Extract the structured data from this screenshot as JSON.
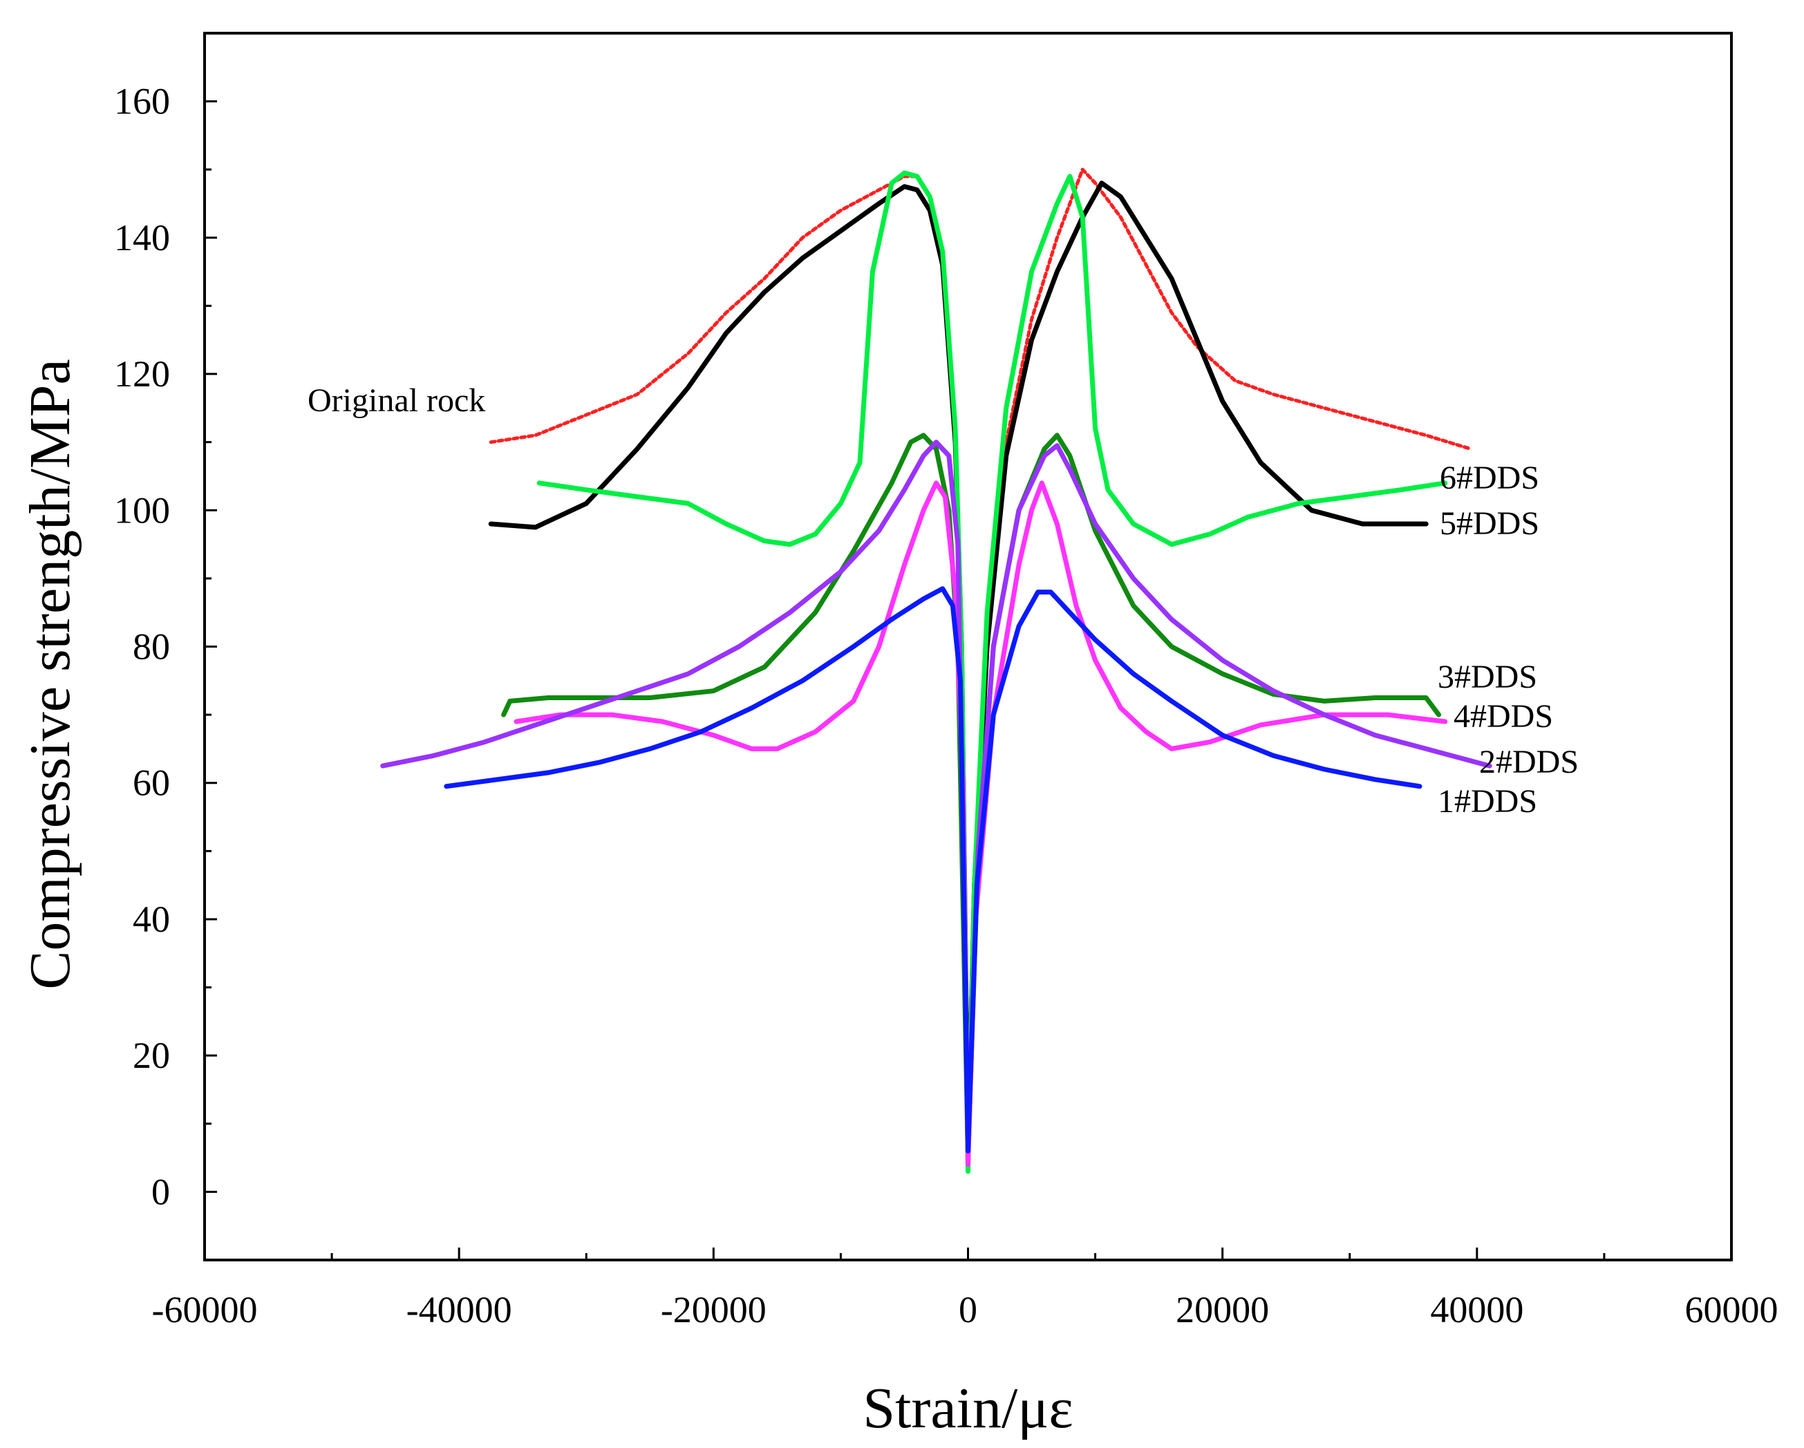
{
  "chart_data": {
    "type": "line",
    "title": "",
    "xlabel": "Strain/με",
    "ylabel": "Compressive strength/MPa",
    "xlim": [
      -60000,
      60000
    ],
    "ylim": [
      -10,
      170
    ],
    "xticks": [
      -60000,
      -40000,
      -20000,
      0,
      20000,
      40000,
      60000
    ],
    "xtick_labels": [
      "-60000",
      "-40000",
      "-20000",
      "0",
      "20000",
      "40000",
      "60000"
    ],
    "yticks": [
      0,
      20,
      40,
      60,
      80,
      100,
      120,
      140,
      160
    ],
    "ytick_labels": [
      "0",
      "20",
      "40",
      "60",
      "80",
      "100",
      "120",
      "140",
      "160"
    ],
    "grid": false,
    "series": [
      {
        "name": "Original rock",
        "label": "Original rock",
        "color": "#ff2020",
        "style": "scattered",
        "points": [
          [
            -37500,
            110
          ],
          [
            -34000,
            111
          ],
          [
            -30000,
            114
          ],
          [
            -26000,
            117
          ],
          [
            -22000,
            123
          ],
          [
            -19000,
            129
          ],
          [
            -16000,
            134
          ],
          [
            -13000,
            140
          ],
          [
            -10000,
            144
          ],
          [
            -7000,
            147
          ],
          [
            -5000,
            149
          ],
          [
            -4000,
            149
          ],
          [
            -3000,
            146
          ],
          [
            -2000,
            138
          ],
          [
            -1000,
            110
          ],
          [
            -500,
            80
          ],
          [
            0,
            14
          ],
          [
            500,
            45
          ],
          [
            1500,
            80
          ],
          [
            3000,
            110
          ],
          [
            5000,
            128
          ],
          [
            7000,
            140
          ],
          [
            9000,
            150
          ],
          [
            10000,
            148
          ],
          [
            12000,
            143
          ],
          [
            14000,
            136
          ],
          [
            16000,
            129
          ],
          [
            18000,
            124
          ],
          [
            21000,
            119
          ],
          [
            24000,
            117
          ],
          [
            28000,
            115
          ],
          [
            32000,
            113
          ],
          [
            36000,
            111
          ],
          [
            39500,
            109
          ]
        ]
      },
      {
        "name": "5#DDS",
        "label": "5#DDS",
        "color": "#000000",
        "style": "line",
        "points": [
          [
            -37500,
            98
          ],
          [
            -34000,
            97.5
          ],
          [
            -30000,
            101
          ],
          [
            -26000,
            109
          ],
          [
            -22000,
            118
          ],
          [
            -19000,
            126
          ],
          [
            -16000,
            132
          ],
          [
            -13000,
            137
          ],
          [
            -10000,
            141
          ],
          [
            -7000,
            145
          ],
          [
            -5000,
            147.5
          ],
          [
            -4000,
            147
          ],
          [
            -3000,
            144
          ],
          [
            -2000,
            136
          ],
          [
            -1000,
            110
          ],
          [
            -500,
            80
          ],
          [
            0,
            6
          ],
          [
            500,
            45
          ],
          [
            1500,
            80
          ],
          [
            3000,
            108
          ],
          [
            5000,
            125
          ],
          [
            7000,
            135
          ],
          [
            9000,
            143
          ],
          [
            10500,
            148
          ],
          [
            12000,
            146
          ],
          [
            14000,
            140
          ],
          [
            16000,
            134
          ],
          [
            18000,
            125
          ],
          [
            20000,
            116
          ],
          [
            23000,
            107
          ],
          [
            27000,
            100
          ],
          [
            31000,
            98
          ],
          [
            36000,
            98
          ]
        ]
      },
      {
        "name": "6#DDS",
        "label": "6#DDS",
        "color": "#00ee44",
        "style": "line",
        "points": [
          [
            -33700,
            104
          ],
          [
            -30000,
            103
          ],
          [
            -26000,
            102
          ],
          [
            -22000,
            101
          ],
          [
            -19000,
            98
          ],
          [
            -16000,
            95.5
          ],
          [
            -14000,
            95
          ],
          [
            -12000,
            96.5
          ],
          [
            -10000,
            101
          ],
          [
            -8500,
            107
          ],
          [
            -7500,
            135
          ],
          [
            -6000,
            148
          ],
          [
            -5000,
            149.5
          ],
          [
            -4000,
            149
          ],
          [
            -3000,
            146
          ],
          [
            -2000,
            138
          ],
          [
            -1000,
            112
          ],
          [
            -500,
            80
          ],
          [
            0,
            3
          ],
          [
            500,
            45
          ],
          [
            1500,
            85
          ],
          [
            3000,
            115
          ],
          [
            5000,
            135
          ],
          [
            7000,
            145
          ],
          [
            8000,
            149
          ],
          [
            9000,
            143
          ],
          [
            10000,
            112
          ],
          [
            11000,
            103
          ],
          [
            13000,
            98
          ],
          [
            16000,
            95
          ],
          [
            19000,
            96.5
          ],
          [
            22000,
            99
          ],
          [
            26000,
            101
          ],
          [
            30000,
            102
          ],
          [
            34000,
            103
          ],
          [
            37500,
            104
          ]
        ]
      },
      {
        "name": "3#DDS",
        "label": "3#DDS",
        "color": "#108a10",
        "style": "line",
        "points": [
          [
            -36500,
            70
          ],
          [
            -36000,
            72
          ],
          [
            -33000,
            72.5
          ],
          [
            -29000,
            72.5
          ],
          [
            -25000,
            72.5
          ],
          [
            -20000,
            73.5
          ],
          [
            -16000,
            77
          ],
          [
            -12000,
            85
          ],
          [
            -9000,
            94
          ],
          [
            -6000,
            104
          ],
          [
            -4500,
            110
          ],
          [
            -3500,
            111
          ],
          [
            -2500,
            109
          ],
          [
            -1500,
            100
          ],
          [
            -800,
            80
          ],
          [
            0,
            5
          ],
          [
            800,
            50
          ],
          [
            2000,
            80
          ],
          [
            4000,
            100
          ],
          [
            6000,
            109
          ],
          [
            7000,
            111
          ],
          [
            8000,
            108
          ],
          [
            10000,
            97
          ],
          [
            13000,
            86
          ],
          [
            16000,
            80
          ],
          [
            20000,
            76
          ],
          [
            24000,
            73
          ],
          [
            28000,
            72
          ],
          [
            32000,
            72.5
          ],
          [
            36000,
            72.5
          ],
          [
            37000,
            70
          ]
        ]
      },
      {
        "name": "4#DDS",
        "label": "4#DDS",
        "color": "#ff33ff",
        "style": "line",
        "points": [
          [
            -35500,
            69
          ],
          [
            -32000,
            70
          ],
          [
            -28000,
            70
          ],
          [
            -24000,
            69
          ],
          [
            -20000,
            67
          ],
          [
            -17000,
            65
          ],
          [
            -15000,
            65
          ],
          [
            -12000,
            67.5
          ],
          [
            -9000,
            72
          ],
          [
            -7000,
            80
          ],
          [
            -5000,
            92
          ],
          [
            -3500,
            100
          ],
          [
            -2500,
            104
          ],
          [
            -1800,
            102
          ],
          [
            -1000,
            88
          ],
          [
            -400,
            60
          ],
          [
            0,
            4
          ],
          [
            600,
            40
          ],
          [
            2000,
            70
          ],
          [
            4000,
            92
          ],
          [
            5000,
            100
          ],
          [
            5800,
            104
          ],
          [
            7000,
            98
          ],
          [
            8500,
            86
          ],
          [
            10000,
            78
          ],
          [
            12000,
            71
          ],
          [
            14000,
            67.5
          ],
          [
            16000,
            65
          ],
          [
            19000,
            66
          ],
          [
            23000,
            68.5
          ],
          [
            28000,
            70
          ],
          [
            33000,
            70
          ],
          [
            37500,
            69
          ]
        ]
      },
      {
        "name": "2#DDS",
        "label": "2#DDS",
        "color": "#9933ff",
        "style": "line",
        "points": [
          [
            -46000,
            62.5
          ],
          [
            -42000,
            64
          ],
          [
            -38000,
            66
          ],
          [
            -34000,
            68.5
          ],
          [
            -30000,
            71
          ],
          [
            -26000,
            73.5
          ],
          [
            -22000,
            76
          ],
          [
            -18000,
            80
          ],
          [
            -14000,
            85
          ],
          [
            -10000,
            91
          ],
          [
            -7000,
            97
          ],
          [
            -5000,
            103
          ],
          [
            -3500,
            108
          ],
          [
            -2500,
            110
          ],
          [
            -1500,
            108
          ],
          [
            -800,
            95
          ],
          [
            0,
            8
          ],
          [
            800,
            50
          ],
          [
            2000,
            80
          ],
          [
            4000,
            100
          ],
          [
            6000,
            108
          ],
          [
            7000,
            109.5
          ],
          [
            8000,
            106
          ],
          [
            10000,
            98
          ],
          [
            13000,
            90
          ],
          [
            16000,
            84
          ],
          [
            20000,
            78
          ],
          [
            24000,
            73.5
          ],
          [
            28000,
            70
          ],
          [
            32000,
            67
          ],
          [
            36000,
            65
          ],
          [
            41000,
            62.5
          ]
        ]
      },
      {
        "name": "1#DDS",
        "label": "1#DDS",
        "color": "#0a1aff",
        "style": "line",
        "points": [
          [
            -41000,
            59.5
          ],
          [
            -37000,
            60.5
          ],
          [
            -33000,
            61.5
          ],
          [
            -29000,
            63
          ],
          [
            -25000,
            65
          ],
          [
            -21000,
            67.5
          ],
          [
            -17000,
            71
          ],
          [
            -13000,
            75
          ],
          [
            -9000,
            80
          ],
          [
            -6000,
            84
          ],
          [
            -3500,
            87
          ],
          [
            -2000,
            88.5
          ],
          [
            -1200,
            86
          ],
          [
            -600,
            75
          ],
          [
            0,
            6
          ],
          [
            700,
            45
          ],
          [
            2000,
            70
          ],
          [
            4000,
            83
          ],
          [
            5500,
            88
          ],
          [
            6500,
            88
          ],
          [
            8000,
            85
          ],
          [
            10000,
            81
          ],
          [
            13000,
            76
          ],
          [
            16000,
            72
          ],
          [
            20000,
            67
          ],
          [
            24000,
            64
          ],
          [
            28000,
            62
          ],
          [
            32000,
            60.5
          ],
          [
            35500,
            59.5
          ]
        ]
      }
    ]
  }
}
